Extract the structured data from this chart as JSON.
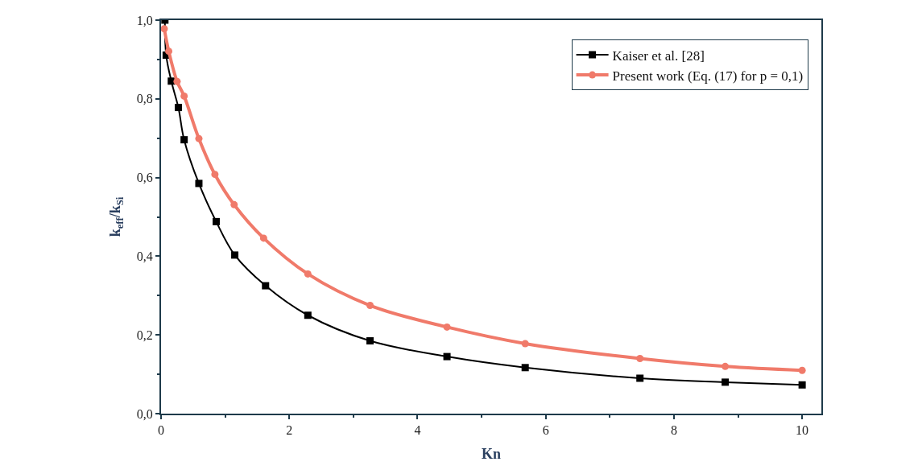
{
  "chart_data": {
    "type": "line",
    "xlabel": "Kn",
    "ylabel": "k$_{eff}$/k$_{Si}$",
    "xlim": [
      0,
      10.3
    ],
    "ylim": [
      0,
      1.0
    ],
    "xticks": [
      0,
      2,
      4,
      6,
      8,
      10
    ],
    "yticks": [
      {
        "value": 0,
        "label": "0,0"
      },
      {
        "value": 0.2,
        "label": "0,2"
      },
      {
        "value": 0.4,
        "label": "0,4"
      },
      {
        "value": 0.6,
        "label": "0,6"
      },
      {
        "value": 0.8,
        "label": "0,8"
      },
      {
        "value": 1.0,
        "label": "1,0"
      }
    ],
    "legend": "top right",
    "line_style": "solid",
    "series": [
      {
        "name": "Kaiser et al. [28]",
        "color": "#000000",
        "marker": "square",
        "x": [
          0.06,
          0.08,
          0.16,
          0.27,
          0.36,
          0.59,
          0.86,
          1.15,
          1.63,
          2.29,
          3.26,
          4.46,
          5.68,
          7.47,
          8.8,
          10
        ],
        "values": [
          1.0,
          0.911,
          0.845,
          0.778,
          0.696,
          0.585,
          0.488,
          0.403,
          0.325,
          0.25,
          0.185,
          0.145,
          0.117,
          0.09,
          0.08,
          0.073
        ]
      },
      {
        "name": "Present work (Eq. (17) for p = 0,1)",
        "color": "#f07a6a",
        "marker": "circle",
        "x": [
          0.05,
          0.12,
          0.25,
          0.36,
          0.59,
          0.84,
          1.14,
          1.6,
          2.29,
          3.26,
          4.46,
          5.68,
          7.47,
          8.8,
          10
        ],
        "values": [
          0.978,
          0.921,
          0.844,
          0.807,
          0.699,
          0.608,
          0.531,
          0.446,
          0.355,
          0.275,
          0.22,
          0.178,
          0.14,
          0.12,
          0.11
        ]
      }
    ]
  }
}
